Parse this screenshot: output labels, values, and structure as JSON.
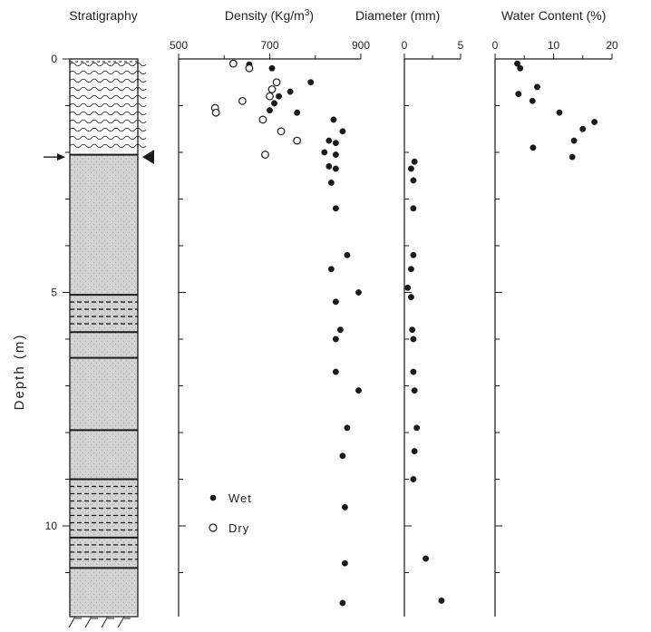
{
  "colors": {
    "ink": "#1a1a1a",
    "fill": "#d3d3d3",
    "background": "#ffffff"
  },
  "y_axis": {
    "label": "Depth (m)",
    "range": [
      0,
      12
    ],
    "ticks": [
      "0",
      "5",
      "10"
    ]
  },
  "stratigraphy": {
    "title": "Stratigraphy",
    "units": [
      {
        "top": 0.0,
        "bottom": 2.05,
        "pattern": "wavy"
      },
      {
        "top": 2.05,
        "bottom": 5.05,
        "pattern": "stipple"
      },
      {
        "top": 5.05,
        "bottom": 5.85,
        "pattern": "stipple-dashed"
      },
      {
        "top": 5.85,
        "bottom": 6.4,
        "pattern": "stipple"
      },
      {
        "top": 6.4,
        "bottom": 7.95,
        "pattern": "stipple"
      },
      {
        "top": 7.95,
        "bottom": 9.0,
        "pattern": "stipple"
      },
      {
        "top": 9.0,
        "bottom": 10.25,
        "pattern": "stipple-dashed"
      },
      {
        "top": 10.25,
        "bottom": 10.9,
        "pattern": "stipple-dashed"
      },
      {
        "top": 10.9,
        "bottom": 11.9,
        "pattern": "stipple"
      }
    ],
    "arrow_depth": 2.1,
    "triangle_depth": 2.1
  },
  "chart_data": [
    {
      "type": "scatter",
      "title": "Density (Kg/m3)",
      "x_axis": {
        "range": [
          500,
          900
        ],
        "ticks": [
          "500",
          "700",
          "900"
        ]
      },
      "y_axis": {
        "range": [
          0,
          12
        ],
        "inverted": true
      },
      "legend": {
        "placement": "bottom-left",
        "entries": [
          "Wet",
          "Dry"
        ]
      },
      "series": [
        {
          "name": "Wet",
          "marker": "filled-circle",
          "points": [
            {
              "x": 655,
              "y": 0.12
            },
            {
              "x": 705,
              "y": 0.2
            },
            {
              "x": 790,
              "y": 0.5
            },
            {
              "x": 745,
              "y": 0.7
            },
            {
              "x": 720,
              "y": 0.8
            },
            {
              "x": 710,
              "y": 0.95
            },
            {
              "x": 700,
              "y": 1.1
            },
            {
              "x": 760,
              "y": 1.15
            },
            {
              "x": 840,
              "y": 1.3
            },
            {
              "x": 860,
              "y": 1.55
            },
            {
              "x": 830,
              "y": 1.75
            },
            {
              "x": 845,
              "y": 1.8
            },
            {
              "x": 820,
              "y": 2.0
            },
            {
              "x": 845,
              "y": 2.05
            },
            {
              "x": 830,
              "y": 2.3
            },
            {
              "x": 845,
              "y": 2.35
            },
            {
              "x": 835,
              "y": 2.65
            },
            {
              "x": 845,
              "y": 3.2
            },
            {
              "x": 870,
              "y": 4.2
            },
            {
              "x": 835,
              "y": 4.5
            },
            {
              "x": 895,
              "y": 5.0
            },
            {
              "x": 845,
              "y": 5.2
            },
            {
              "x": 855,
              "y": 5.8
            },
            {
              "x": 845,
              "y": 6.0
            },
            {
              "x": 845,
              "y": 6.7
            },
            {
              "x": 895,
              "y": 7.1
            },
            {
              "x": 870,
              "y": 7.9
            },
            {
              "x": 860,
              "y": 8.5
            },
            {
              "x": 865,
              "y": 9.6
            },
            {
              "x": 865,
              "y": 10.8
            },
            {
              "x": 860,
              "y": 11.65
            }
          ]
        },
        {
          "name": "Dry",
          "marker": "open-circle",
          "points": [
            {
              "x": 620,
              "y": 0.1
            },
            {
              "x": 655,
              "y": 0.2
            },
            {
              "x": 715,
              "y": 0.5
            },
            {
              "x": 705,
              "y": 0.65
            },
            {
              "x": 700,
              "y": 0.8
            },
            {
              "x": 640,
              "y": 0.9
            },
            {
              "x": 580,
              "y": 1.05
            },
            {
              "x": 582,
              "y": 1.15
            },
            {
              "x": 685,
              "y": 1.3
            },
            {
              "x": 725,
              "y": 1.55
            },
            {
              "x": 760,
              "y": 1.75
            },
            {
              "x": 690,
              "y": 2.05
            }
          ]
        }
      ]
    },
    {
      "type": "scatter",
      "title": "Diameter (mm)",
      "x_axis": {
        "range": [
          0,
          5
        ],
        "ticks": [
          "0",
          "5"
        ]
      },
      "y_axis": {
        "range": [
          0,
          12
        ],
        "inverted": true
      },
      "series": [
        {
          "marker": "filled-circle",
          "points": [
            {
              "x": 0.9,
              "y": 2.2
            },
            {
              "x": 0.6,
              "y": 2.35
            },
            {
              "x": 0.8,
              "y": 2.6
            },
            {
              "x": 0.8,
              "y": 3.2
            },
            {
              "x": 0.8,
              "y": 4.2
            },
            {
              "x": 0.6,
              "y": 4.5
            },
            {
              "x": 0.3,
              "y": 4.9
            },
            {
              "x": 0.6,
              "y": 5.1
            },
            {
              "x": 0.7,
              "y": 5.8
            },
            {
              "x": 0.8,
              "y": 6.0
            },
            {
              "x": 0.8,
              "y": 6.7
            },
            {
              "x": 0.9,
              "y": 7.1
            },
            {
              "x": 1.1,
              "y": 7.9
            },
            {
              "x": 0.9,
              "y": 8.4
            },
            {
              "x": 0.8,
              "y": 9.0
            },
            {
              "x": 1.9,
              "y": 10.7
            },
            {
              "x": 3.3,
              "y": 11.6
            }
          ]
        }
      ]
    },
    {
      "type": "scatter",
      "title": "Water Content (%)",
      "x_axis": {
        "range": [
          0,
          20
        ],
        "ticks": [
          "0",
          "10",
          "20"
        ]
      },
      "y_axis": {
        "range": [
          0,
          12
        ],
        "inverted": true
      },
      "series": [
        {
          "marker": "filled-circle",
          "points": [
            {
              "x": 3.8,
              "y": 0.1
            },
            {
              "x": 4.3,
              "y": 0.2
            },
            {
              "x": 7.2,
              "y": 0.6
            },
            {
              "x": 4.0,
              "y": 0.75
            },
            {
              "x": 6.4,
              "y": 0.9
            },
            {
              "x": 11.0,
              "y": 1.15
            },
            {
              "x": 17.0,
              "y": 1.35
            },
            {
              "x": 15.0,
              "y": 1.5
            },
            {
              "x": 13.5,
              "y": 1.75
            },
            {
              "x": 6.5,
              "y": 1.9
            },
            {
              "x": 13.2,
              "y": 2.1
            }
          ]
        }
      ]
    }
  ]
}
